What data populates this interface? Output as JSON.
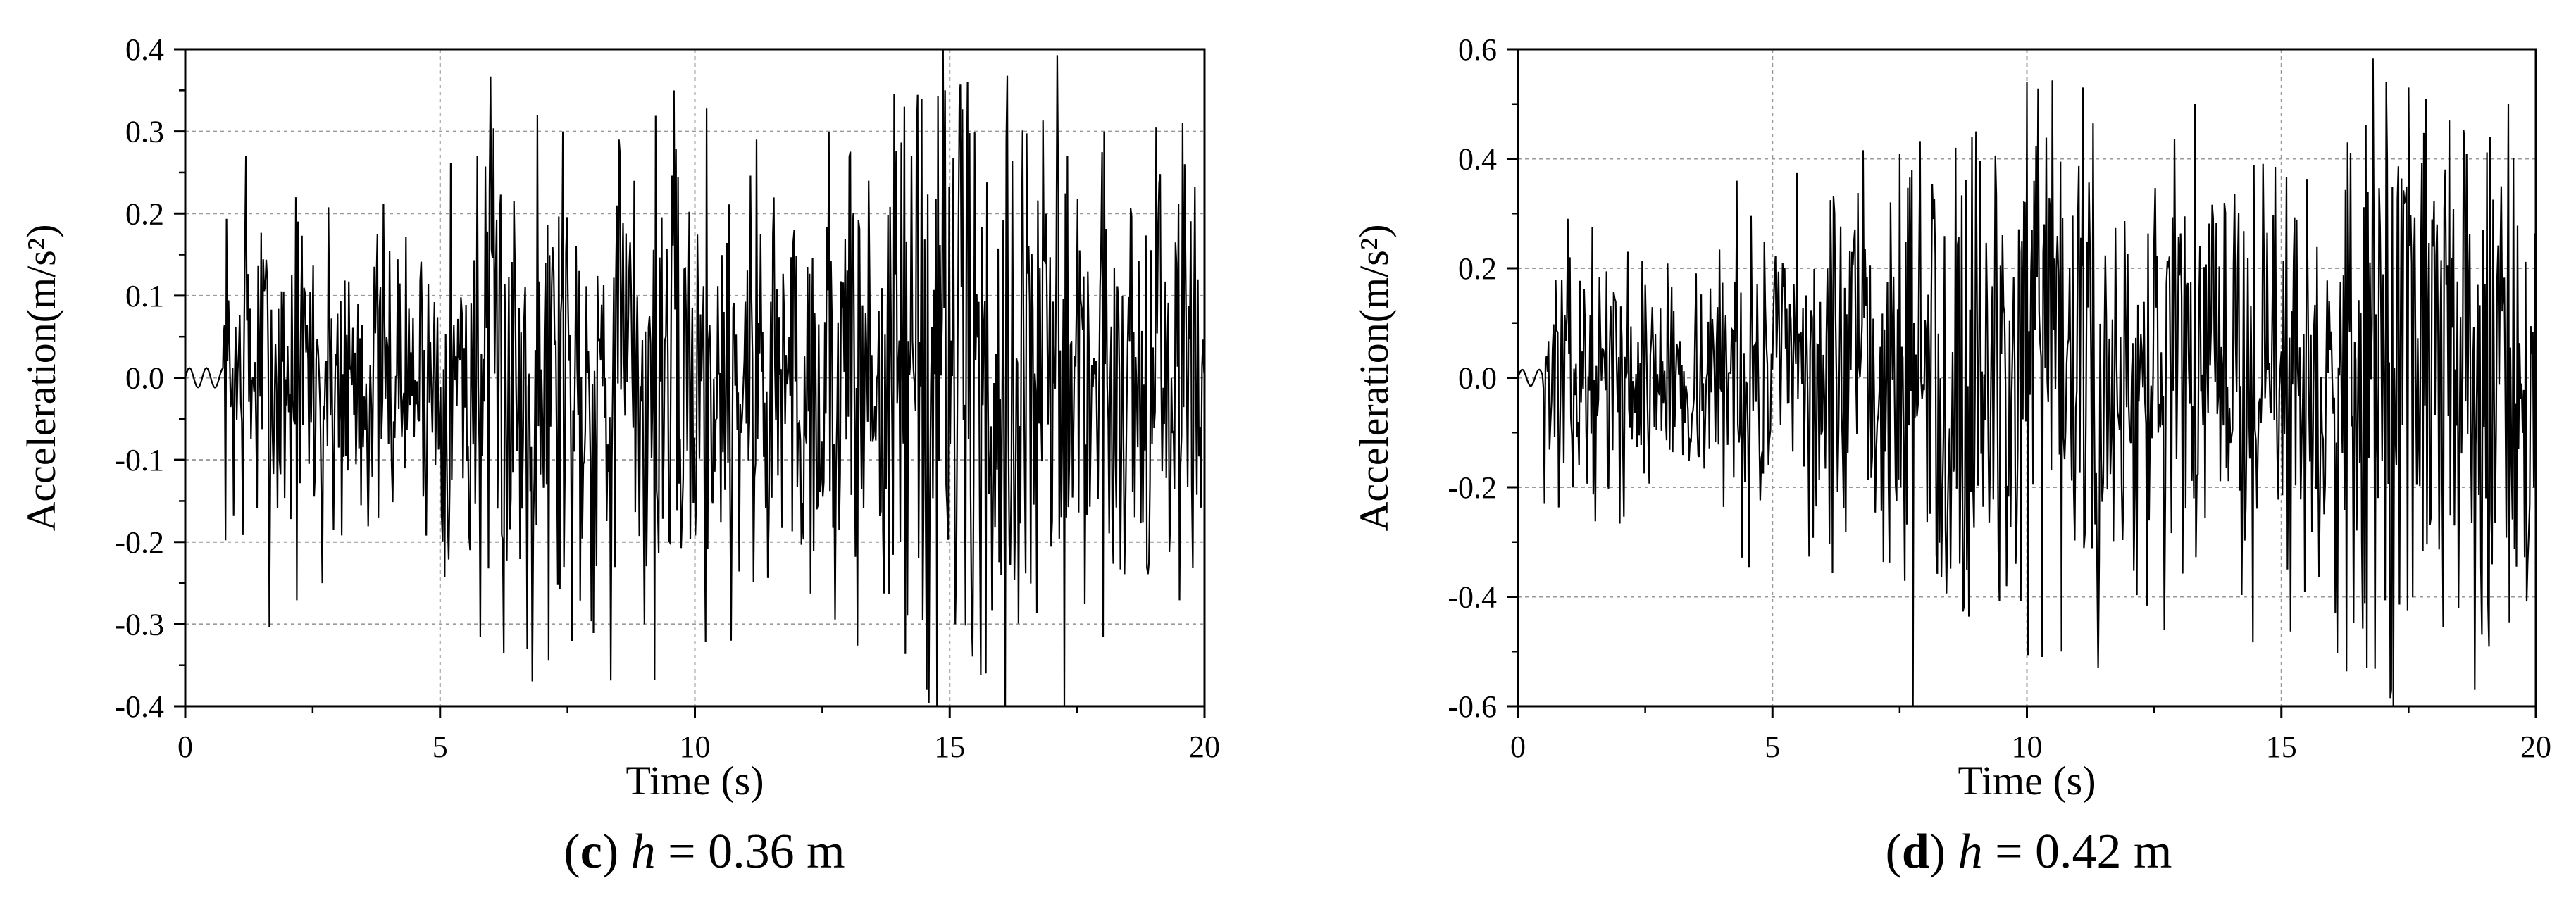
{
  "chart_data": [
    {
      "type": "line",
      "panel": "c",
      "caption_label": "c",
      "caption_var": "h",
      "caption_rest": " = 0.36 m",
      "xlabel": "Time (s)",
      "ylabel": "Acceleration(m/s²)",
      "xlim": [
        0,
        20
      ],
      "ylim": [
        -0.4,
        0.4
      ],
      "xticks": [
        0,
        5,
        10,
        15,
        20
      ],
      "xtick_labels": [
        "0",
        "5",
        "10",
        "15",
        "20"
      ],
      "yticks": [
        -0.4,
        -0.3,
        -0.2,
        -0.1,
        0.0,
        0.1,
        0.2,
        0.3,
        0.4
      ],
      "ytick_labels": [
        "-0.4",
        "-0.3",
        "-0.2",
        "-0.1",
        "0.0",
        "0.1",
        "0.2",
        "0.3",
        "0.4"
      ],
      "grid": true,
      "line_color": "#000000",
      "series": [
        {
          "signal_start": 0.75,
          "sample_step": 0.02,
          "x_end": 20,
          "pre_amplitude": 0.012,
          "envelope": [
            [
              0.75,
              0.12
            ],
            [
              1.5,
              0.15
            ],
            [
              2.5,
              0.14
            ],
            [
              3.5,
              0.12
            ],
            [
              4.5,
              0.1
            ],
            [
              5.5,
              0.18
            ],
            [
              6.5,
              0.2
            ],
            [
              8,
              0.19
            ],
            [
              10,
              0.18
            ],
            [
              12,
              0.17
            ],
            [
              13.5,
              0.2
            ],
            [
              14.5,
              0.27
            ],
            [
              15.5,
              0.26
            ],
            [
              17,
              0.2
            ],
            [
              18.5,
              0.19
            ],
            [
              20,
              0.19
            ]
          ],
          "peaks": [
            [
              1.2,
              0.27
            ],
            [
              2.7,
              -0.25
            ],
            [
              6.7,
              -0.33
            ],
            [
              6.9,
              0.32
            ],
            [
              7.4,
              0.3
            ],
            [
              8.5,
              0.29
            ],
            [
              9.0,
              -0.3
            ],
            [
              10.7,
              -0.32
            ],
            [
              11.2,
              0.29
            ],
            [
              14.1,
              0.33
            ],
            [
              14.45,
              0.34
            ],
            [
              14.55,
              -0.38
            ],
            [
              14.9,
              0.35
            ],
            [
              15.1,
              -0.3
            ],
            [
              15.35,
              0.36
            ],
            [
              15.7,
              -0.36
            ],
            [
              16.1,
              0.29
            ],
            [
              17.3,
              0.27
            ],
            [
              19.6,
              0.26
            ]
          ],
          "seed": 7
        }
      ]
    },
    {
      "type": "line",
      "panel": "d",
      "caption_label": "d",
      "caption_var": "h",
      "caption_rest": " = 0.42 m",
      "xlabel": "Time (s)",
      "ylabel": "Acceleration(m/s²)",
      "xlim": [
        0,
        20
      ],
      "ylim": [
        -0.6,
        0.6
      ],
      "xticks": [
        0,
        5,
        10,
        15,
        20
      ],
      "xtick_labels": [
        "0",
        "5",
        "10",
        "15",
        "20"
      ],
      "yticks": [
        -0.6,
        -0.4,
        -0.2,
        0.0,
        0.2,
        0.4,
        0.6
      ],
      "ytick_labels": [
        "-0.6",
        "-0.4",
        "-0.2",
        "0.0",
        "0.2",
        "0.4",
        "0.6"
      ],
      "grid": true,
      "line_color": "#000000",
      "series": [
        {
          "signal_start": 0.5,
          "sample_step": 0.02,
          "x_end": 20,
          "pre_amplitude": 0.015,
          "envelope": [
            [
              0.5,
              0.15
            ],
            [
              2,
              0.13
            ],
            [
              3.5,
              0.12
            ],
            [
              4.5,
              0.17
            ],
            [
              6,
              0.2
            ],
            [
              7.5,
              0.26
            ],
            [
              9,
              0.3
            ],
            [
              10.5,
              0.28
            ],
            [
              12,
              0.26
            ],
            [
              13.5,
              0.24
            ],
            [
              15,
              0.24
            ],
            [
              16.5,
              0.3
            ],
            [
              17.5,
              0.34
            ],
            [
              19,
              0.3
            ],
            [
              20,
              0.3
            ]
          ],
          "peaks": [
            [
              4.3,
              0.36
            ],
            [
              8.6,
              0.42
            ],
            [
              8.75,
              -0.42
            ],
            [
              9.0,
              0.45
            ],
            [
              10.0,
              0.54
            ],
            [
              10.3,
              -0.51
            ],
            [
              11.1,
              0.53
            ],
            [
              11.4,
              -0.53
            ],
            [
              12.7,
              -0.46
            ],
            [
              13.3,
              0.5
            ],
            [
              16.3,
              0.43
            ],
            [
              17.05,
              0.54
            ],
            [
              17.15,
              -0.57
            ],
            [
              17.5,
              0.53
            ],
            [
              18.3,
              0.47
            ],
            [
              18.8,
              -0.57
            ],
            [
              19.1,
              0.44
            ],
            [
              19.45,
              0.5
            ],
            [
              20.0,
              -0.45
            ]
          ],
          "seed": 13
        }
      ]
    }
  ]
}
